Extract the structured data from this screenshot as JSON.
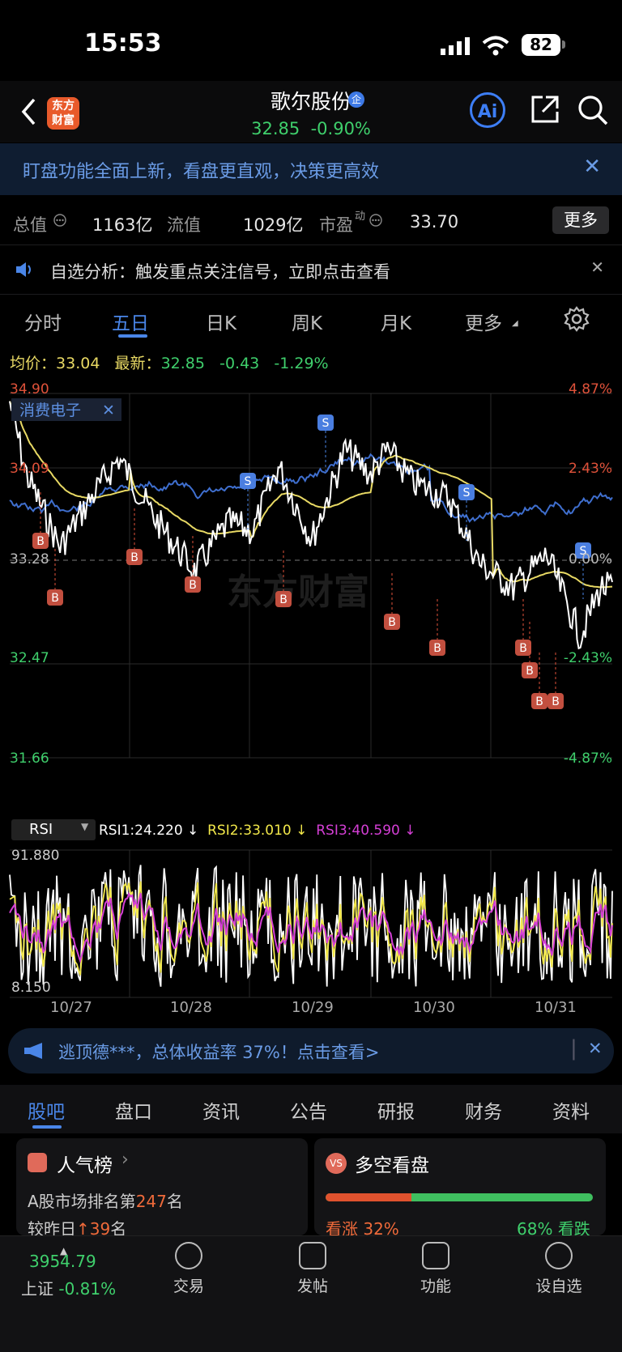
{
  "status": {
    "time": "15:53",
    "battery": "82"
  },
  "header": {
    "logo_line1": "东方",
    "logo_line2": "财富",
    "title": "歌尔股份",
    "price": "32.85",
    "change_pct": "-0.90%",
    "ai_label": "Ai",
    "tag": "企"
  },
  "banner": {
    "text": "盯盘功能全面上新，看盘更直观，决策更高效",
    "close": "✕"
  },
  "metrics": {
    "total_label": "总值",
    "total_value": "1163亿",
    "float_label": "流值",
    "float_value": "1029亿",
    "pe_label": "市盈",
    "pe_sup": "动",
    "pe_value": "33.70",
    "more": "更多"
  },
  "notice": {
    "text": "自选分析：触发重点关注信号，立即点击查看",
    "close": "✕"
  },
  "tabs": {
    "t1": "分时",
    "t2": "五日",
    "t3": "日K",
    "t4": "周K",
    "t5": "月K",
    "t6": "更多"
  },
  "info": {
    "avg_label": "均价：",
    "avg": "33.04",
    "last_label": "最新：",
    "last": "32.85",
    "chg": "-0.43",
    "pct": "-1.29%"
  },
  "chart_data": {
    "type": "line",
    "y_left_ticks": [
      "34.90",
      "34.09",
      "33.28",
      "32.47",
      "31.66"
    ],
    "y_right_ticks": [
      "4.87%",
      "2.43%",
      "0.00%",
      "-2.43%",
      "-4.87%"
    ],
    "overlay_tag": "消费电子",
    "signals_s": [
      "S",
      "S",
      "S",
      "S",
      "S"
    ],
    "signals_b": [
      "B",
      "B",
      "B",
      "B",
      "B",
      "B",
      "B",
      "B",
      "B",
      "B",
      "B",
      "B",
      "B",
      "B"
    ],
    "rsi": {
      "selector": "RSI",
      "rsi1": "RSI1:24.220 ↓",
      "rsi2": "RSI2:33.010 ↓",
      "rsi3": "RSI3:40.590 ↓",
      "ymax": "91.880",
      "ymin": "8.150"
    },
    "dates": [
      "10/27",
      "10/28",
      "10/29",
      "10/30",
      "10/31"
    ],
    "series_colors": {
      "price": "#ffffff",
      "avg": "#e8d964",
      "sector": "#3f6fcf",
      "rsi2": "#f2e84a",
      "rsi3": "#d53fd6"
    }
  },
  "ad": {
    "text": "逃顶德***，总体收益率 37%！点击查看>",
    "close": "✕"
  },
  "bottom_tabs": {
    "t1": "股吧",
    "t2": "盘口",
    "t3": "资讯",
    "t4": "公告",
    "t5": "研报",
    "t6": "财务",
    "t7": "资料"
  },
  "card_left": {
    "title": "人气榜",
    "line1_pre": "A股市场排名第",
    "rank": "247",
    "line1_post": "名",
    "line2_pre": "较昨日",
    "delta": "39",
    "line2_post": "名"
  },
  "card_right": {
    "title": "多空看盘",
    "bull_label": "看涨",
    "bull": "32%",
    "bear": "68%",
    "bear_label": "看跌",
    "bull_fraction": 0.32
  },
  "navbar": {
    "index_value": "3954.79",
    "index_label": "上证",
    "index_change": "-0.81%",
    "n2": "交易",
    "n3": "发帖",
    "n4": "功能",
    "n5": "设自选"
  }
}
